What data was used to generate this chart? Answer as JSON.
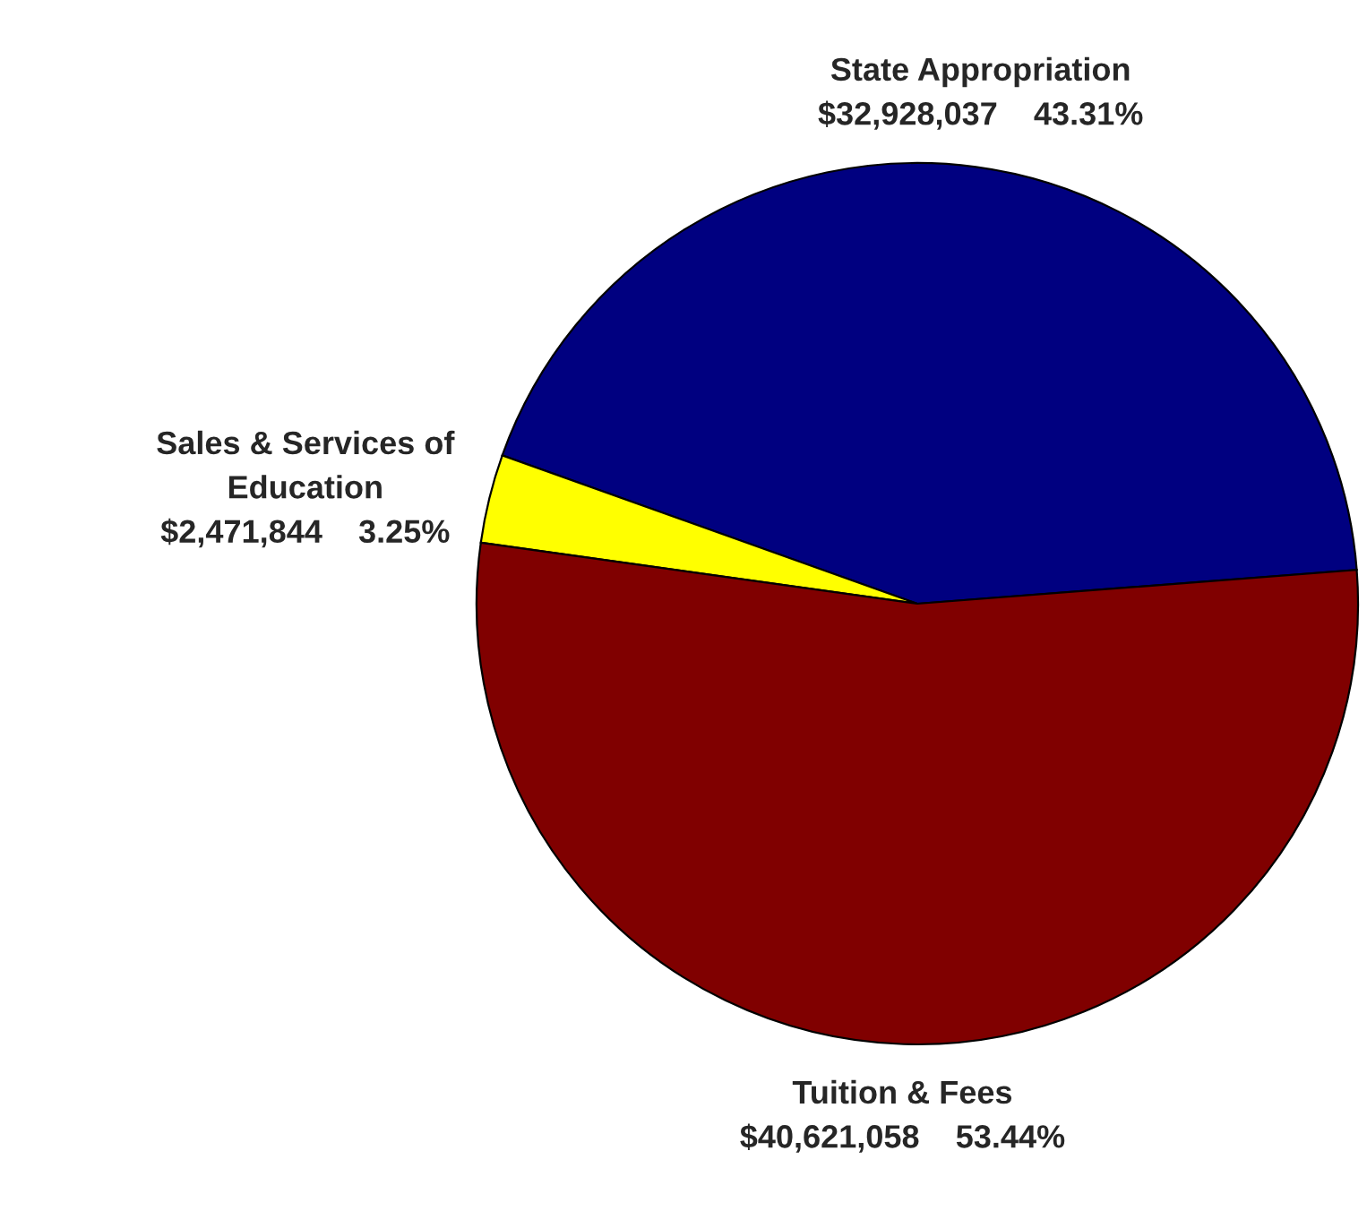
{
  "chart_data": {
    "type": "pie",
    "categories": [
      "State Appropriation",
      "Sales & Services of\nEducation",
      "Tuition & Fees"
    ],
    "values": [
      32928037,
      2471844,
      40621058
    ],
    "value_labels": [
      "$32,928,037    43.31%",
      "$2,471,844    3.25%",
      "$40,621,058    53.44%"
    ],
    "colors": [
      "#000080",
      "#ffff00",
      "#800000"
    ]
  }
}
